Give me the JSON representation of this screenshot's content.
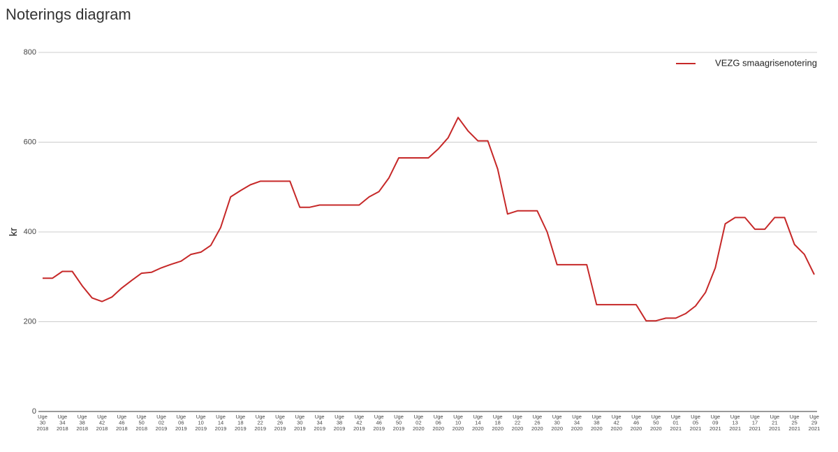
{
  "chart_data": {
    "type": "line",
    "title": "Noterings diagram",
    "y_label": "kr",
    "categories": [
      "Uge 30 2018",
      null,
      "Uge 34 2018",
      null,
      "Uge 38 2018",
      null,
      "Uge 42 2018",
      null,
      "Uge 46 2018",
      null,
      "Uge 50 2018",
      null,
      "Uge 02 2019",
      null,
      "Uge 06 2019",
      null,
      "Uge 10 2019",
      null,
      "Uge 14 2019",
      null,
      "Uge 18 2019",
      null,
      "Uge 22 2019",
      null,
      "Uge 26 2019",
      null,
      "Uge 30 2019",
      null,
      "Uge 34 2019",
      null,
      "Uge 38 2019",
      null,
      "Uge 42 2019",
      null,
      "Uge 46 2019",
      null,
      "Uge 50 2019",
      null,
      "Uge 02 2020",
      null,
      "Uge 06 2020",
      null,
      "Uge 10 2020",
      null,
      "Uge 14 2020",
      null,
      "Uge 18 2020",
      null,
      "Uge 22 2020",
      null,
      "Uge 26 2020",
      null,
      "Uge 30 2020",
      null,
      "Uge 34 2020",
      null,
      "Uge 38 2020",
      null,
      "Uge 42 2020",
      null,
      "Uge 46 2020",
      null,
      "Uge 50 2020",
      null,
      "Uge 01 2021",
      null,
      "Uge 05 2021",
      null,
      "Uge 09 2021",
      null,
      "Uge 13 2021",
      null,
      "Uge 17 2021",
      null,
      "Uge 21 2021",
      null,
      "Uge 25 2021",
      null,
      "Uge 29 2021"
    ],
    "series": [
      {
        "name": "VEZG smaagrisenotering",
        "color": "#c62828",
        "values": [
          297,
          297,
          312,
          312,
          280,
          253,
          245,
          255,
          275,
          292,
          308,
          310,
          320,
          328,
          335,
          350,
          355,
          370,
          410,
          478,
          492,
          505,
          513,
          513,
          513,
          513,
          455,
          455,
          460,
          460,
          460,
          460,
          460,
          478,
          490,
          520,
          565,
          565,
          565,
          565,
          585,
          610,
          655,
          625,
          603,
          603,
          540,
          440,
          447,
          447,
          447,
          400,
          327,
          327,
          327,
          327,
          238,
          238,
          238,
          238,
          238,
          202,
          202,
          208,
          208,
          218,
          235,
          265,
          320,
          418,
          432,
          432,
          406,
          406,
          432,
          432,
          372,
          350,
          305
        ]
      }
    ],
    "ylim": [
      0,
      800
    ],
    "yticks": [
      0,
      200,
      400,
      600,
      800
    ],
    "grid": true,
    "legend": "top-right"
  }
}
